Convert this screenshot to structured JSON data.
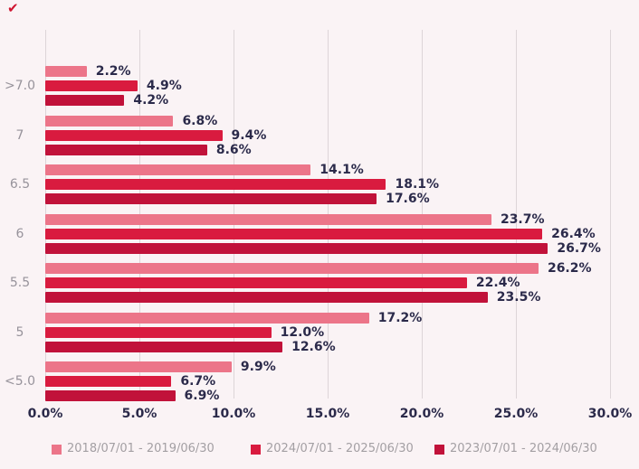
{
  "page": {
    "background_color": "#faf3f5",
    "corner_mark": "✔"
  },
  "chart_data": {
    "type": "bar",
    "orientation": "horizontal",
    "title": "",
    "xlabel": "",
    "ylabel": "",
    "grid": true,
    "legend_position": "bottom",
    "categories": [
      ">7.0",
      "7",
      "6.5",
      "6",
      "5.5",
      "5",
      "<5.0"
    ],
    "series": [
      {
        "name": "2018/07/01 - 2019/06/30",
        "color": "#ec7589",
        "values": [
          2.2,
          6.8,
          14.1,
          23.7,
          26.2,
          17.2,
          9.9
        ],
        "labels": [
          "2.2%",
          "6.8%",
          "14.1%",
          "23.7%",
          "26.2%",
          "17.2%",
          "9.9%"
        ]
      },
      {
        "name": "2024/07/01 - 2025/06/30",
        "color": "#d91b3f",
        "values": [
          4.9,
          9.4,
          18.1,
          26.4,
          22.4,
          12.0,
          6.7
        ],
        "labels": [
          "4.9%",
          "9.4%",
          "18.1%",
          "26.4%",
          "22.4%",
          "12.0%",
          "6.7%"
        ]
      },
      {
        "name": "2023/07/01 - 2024/06/30",
        "color": "#c1123a",
        "values": [
          4.2,
          8.6,
          17.6,
          26.7,
          23.5,
          12.6,
          6.9
        ],
        "labels": [
          "4.2%",
          "8.6%",
          "17.6%",
          "26.7%",
          "23.5%",
          "12.6%",
          "6.9%"
        ]
      }
    ],
    "x_ticks": [
      "0.0%",
      "5.0%",
      "10.0%",
      "15.0%",
      "20.0%",
      "25.0%",
      "30.0%"
    ],
    "x_tick_values": [
      0,
      5,
      10,
      15,
      20,
      25,
      30
    ],
    "xlim": [
      0,
      30.8
    ]
  },
  "style": {
    "gridline_color": "#ddd5d8",
    "value_label_color": "#2b2a4a",
    "tick_label_color": "#2b2a4a",
    "category_label_color": "#97939b",
    "legend_text_color": "#a39fa3"
  }
}
